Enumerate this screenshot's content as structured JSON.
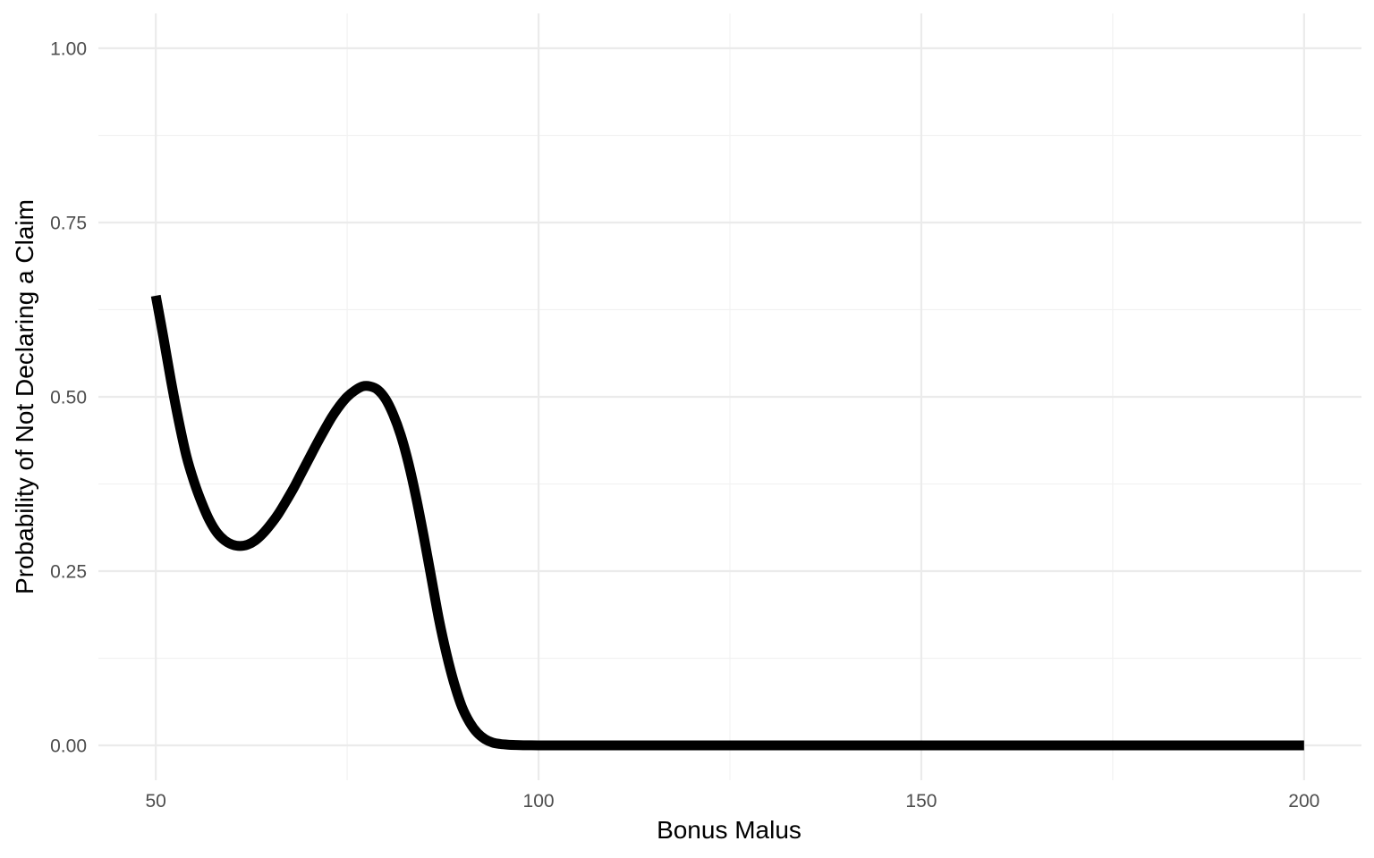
{
  "chart_data": {
    "type": "line",
    "title": "",
    "xlabel": "Bonus Malus",
    "ylabel": "Probability of Not Declaring a Claim",
    "xlim": [
      42.5,
      207.5
    ],
    "ylim": [
      -0.05,
      1.05
    ],
    "x_ticks": [
      50,
      100,
      150,
      200
    ],
    "x_tick_labels": [
      "50",
      "100",
      "150",
      "200"
    ],
    "y_ticks": [
      0,
      0.25,
      0.5,
      0.75,
      1.0
    ],
    "y_tick_labels": [
      "0.00",
      "0.25",
      "0.50",
      "0.75",
      "1.00"
    ],
    "x_minor_ticks": [
      75,
      125,
      175
    ],
    "y_minor_ticks": [
      0.125,
      0.375,
      0.625,
      0.875
    ],
    "grid": true,
    "legend": "none",
    "line_color": "#000000",
    "series": [
      {
        "x": [
          50,
          51,
          52,
          53,
          54,
          55,
          56,
          57,
          58,
          59,
          60,
          61,
          62,
          63,
          64,
          65,
          66,
          67,
          68,
          69,
          70,
          71,
          72,
          73,
          74,
          75,
          76,
          77,
          78,
          79,
          80,
          81,
          82,
          83,
          84,
          85,
          86,
          87,
          88,
          89,
          90,
          91,
          92,
          93,
          94,
          95,
          96,
          97,
          98,
          99,
          100,
          101,
          102,
          103,
          104,
          105,
          110,
          120,
          130,
          140,
          150,
          160,
          170,
          180,
          190,
          200
        ],
        "y": [
          0.645,
          0.585,
          0.522,
          0.465,
          0.415,
          0.378,
          0.348,
          0.323,
          0.305,
          0.294,
          0.288,
          0.286,
          0.288,
          0.294,
          0.304,
          0.317,
          0.332,
          0.35,
          0.369,
          0.39,
          0.411,
          0.432,
          0.452,
          0.471,
          0.487,
          0.5,
          0.509,
          0.515,
          0.515,
          0.51,
          0.497,
          0.475,
          0.445,
          0.405,
          0.356,
          0.3,
          0.24,
          0.18,
          0.13,
          0.088,
          0.055,
          0.033,
          0.018,
          0.009,
          0.004,
          0.002,
          0.001,
          0.0005,
          0.0002,
          0.0001,
          0.0,
          0.0,
          0.0,
          0.0,
          0.0,
          0.0,
          0.0,
          0.0,
          0.0,
          0.0,
          0.0,
          0.0,
          0.0,
          0.0,
          0.0,
          0.0
        ]
      }
    ]
  }
}
